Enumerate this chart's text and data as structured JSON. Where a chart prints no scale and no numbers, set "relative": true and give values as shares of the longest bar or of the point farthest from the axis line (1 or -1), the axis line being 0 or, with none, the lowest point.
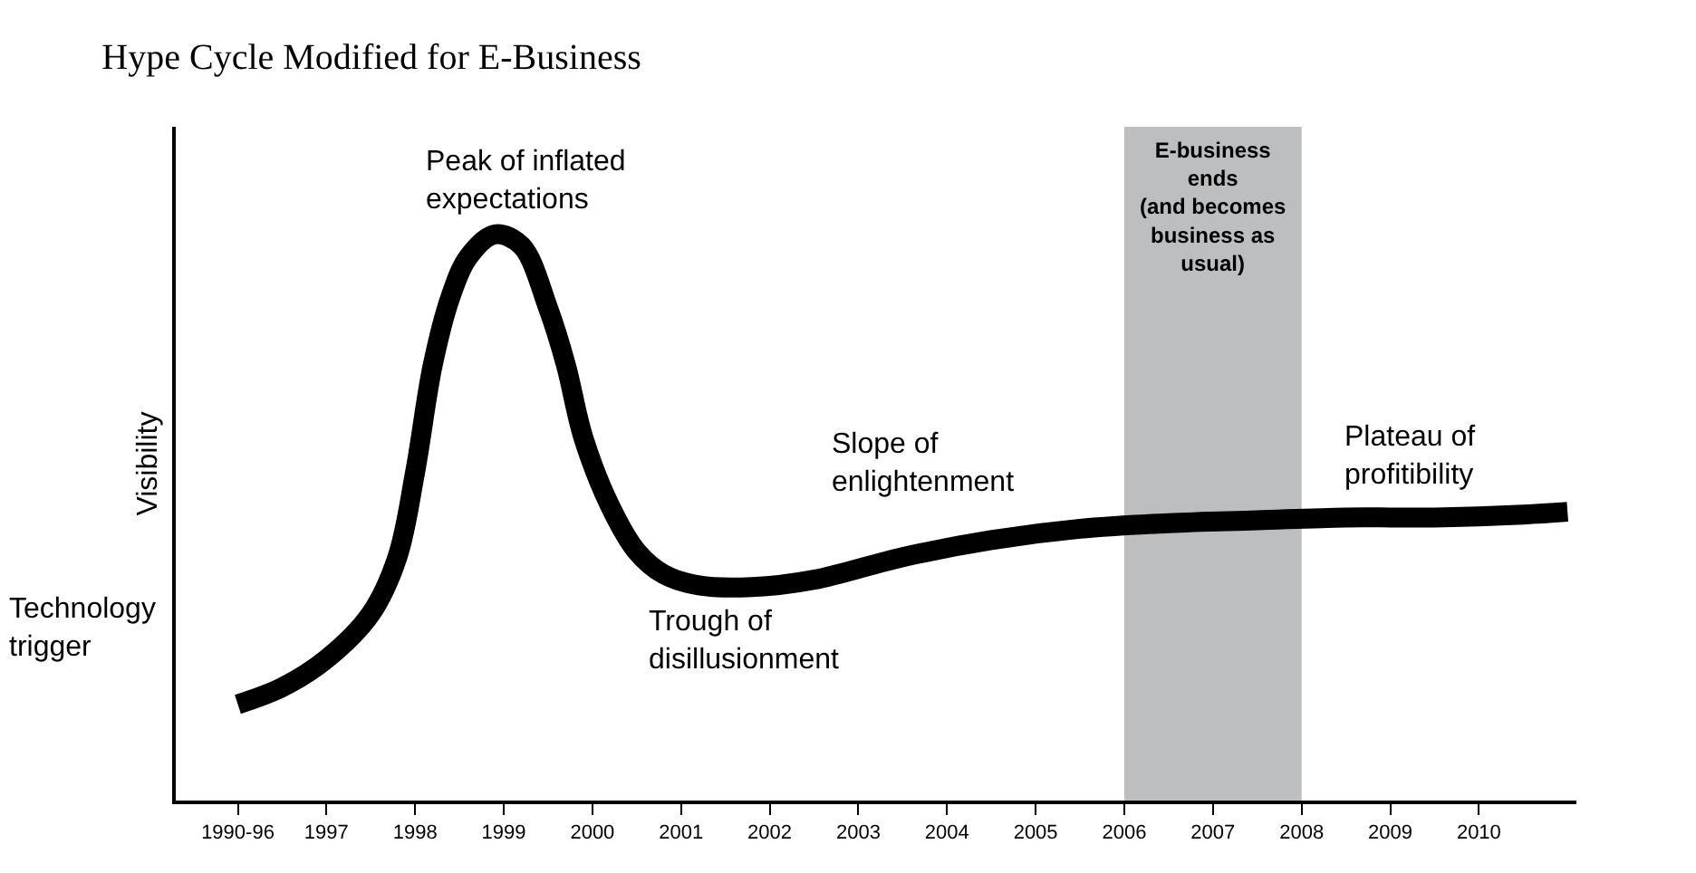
{
  "chart_data": {
    "type": "line",
    "title": "Hype Cycle Modified for E-Business",
    "ylabel": "Visibility",
    "relative": true,
    "xlim": [
      1995.3,
      2011.1
    ],
    "xticks": [
      {
        "value": 1996,
        "label": "1990-96"
      },
      1997,
      1998,
      1999,
      2000,
      2001,
      2002,
      2003,
      2004,
      2005,
      2006,
      2007,
      2008,
      2009,
      2010
    ],
    "series": [
      {
        "color": "#000000",
        "x": [
          1996,
          1996.5,
          1997,
          1997.5,
          1997.8,
          1998,
          1998.2,
          1998.4,
          1998.6,
          1998.9,
          1999.2,
          1999.5,
          1999.7,
          1999.9,
          2000.2,
          2000.5,
          2000.8,
          2001.2,
          2001.8,
          2002.5,
          2003.5,
          2004.5,
          2005.5,
          2006.5,
          2007.5,
          2008.5,
          2009.5,
          2010.5,
          2011
        ],
        "values": [
          0.17,
          0.2,
          0.25,
          0.33,
          0.43,
          0.58,
          0.77,
          0.89,
          0.96,
          1.0,
          0.98,
          0.87,
          0.77,
          0.64,
          0.52,
          0.44,
          0.4,
          0.38,
          0.377,
          0.39,
          0.43,
          0.46,
          0.48,
          0.49,
          0.495,
          0.5,
          0.5,
          0.505,
          0.51
        ]
      }
    ],
    "bands": [
      {
        "axis": "x",
        "from": 2006,
        "to": 2008,
        "label": "E-business\nends\n(and becomes\nbusiness as\nusual)",
        "color": "#bcbec0"
      }
    ],
    "annotations": [
      "Technology\ntrigger",
      "Peak of inflated\nexpectations",
      "Trough of\ndisillusionment",
      "Slope of\nenlightenment",
      "Plateau of\nprofitibility"
    ]
  }
}
